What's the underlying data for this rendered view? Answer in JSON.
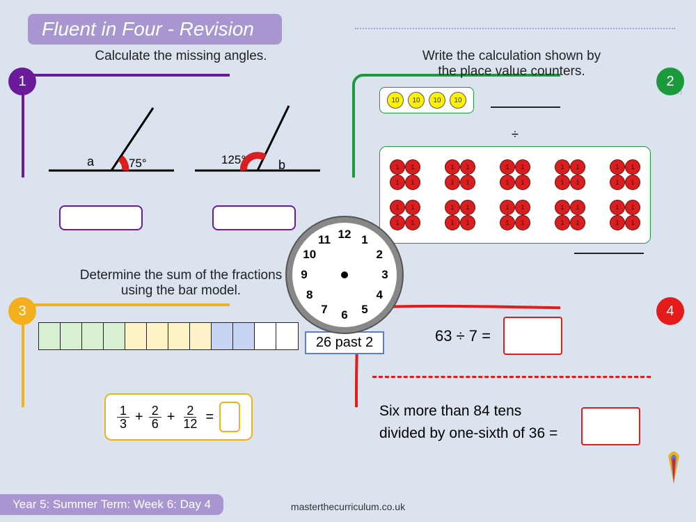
{
  "title": "Fluent in Four - Revision",
  "colors": {
    "page_bg": "#dae3ee",
    "title_bg": "#a896d0",
    "p1_border": "#6a1b9a",
    "p2_border": "#1b9a3c",
    "p3_border": "#f2b01e",
    "p4_border": "#e31b1b",
    "angle_arc": "#d81e1e",
    "bar_green": "#d7f0d2",
    "bar_yellow": "#fdf3c6",
    "bar_blue": "#c7d3f2",
    "ten_fill": "#fff200",
    "one_fill": "#d81e1e",
    "clock_accent": "#5b7fc7"
  },
  "panels": {
    "1": {
      "badge": "1",
      "instruction": "Calculate the missing angles.",
      "angle_left_label": "a",
      "angle_left_value": "75°",
      "angle_right_value": "125°",
      "angle_right_label": "b"
    },
    "2": {
      "badge": "2",
      "instruction": "Write the calculation shown by\nthe place value counters.",
      "tens_count": 4,
      "ten_label": "10",
      "ones_rows": 2,
      "ones_clusters_per_row": 5,
      "ones_per_cluster": 4,
      "one_label": "1",
      "divide_symbol": "÷"
    },
    "3": {
      "badge": "3",
      "instruction": "Determine the sum of the fractions\nusing the bar model.",
      "bar_cells": [
        "green",
        "green",
        "green",
        "green",
        "yellow",
        "yellow",
        "yellow",
        "yellow",
        "blue",
        "blue",
        "white",
        "white"
      ],
      "expression": {
        "terms": [
          {
            "n": "1",
            "d": "3"
          },
          {
            "n": "2",
            "d": "6"
          },
          {
            "n": "2",
            "d": "12"
          }
        ],
        "op": "+",
        "eq": "="
      }
    },
    "4": {
      "badge": "4",
      "expr": "63 ÷ 7 =",
      "text_line1": "Six more than 84 tens",
      "text_line2": "divided by one-sixth of 36 ="
    }
  },
  "clock": {
    "numbers": [
      "12",
      "1",
      "2",
      "3",
      "4",
      "5",
      "6",
      "7",
      "8",
      "9",
      "10",
      "11"
    ],
    "label": "26 past 2"
  },
  "footer": {
    "left": "Year 5: Summer Term: Week 6: Day 4",
    "mid": "masterthecurriculum.co.uk"
  },
  "watermark": "Master The Curriculum"
}
